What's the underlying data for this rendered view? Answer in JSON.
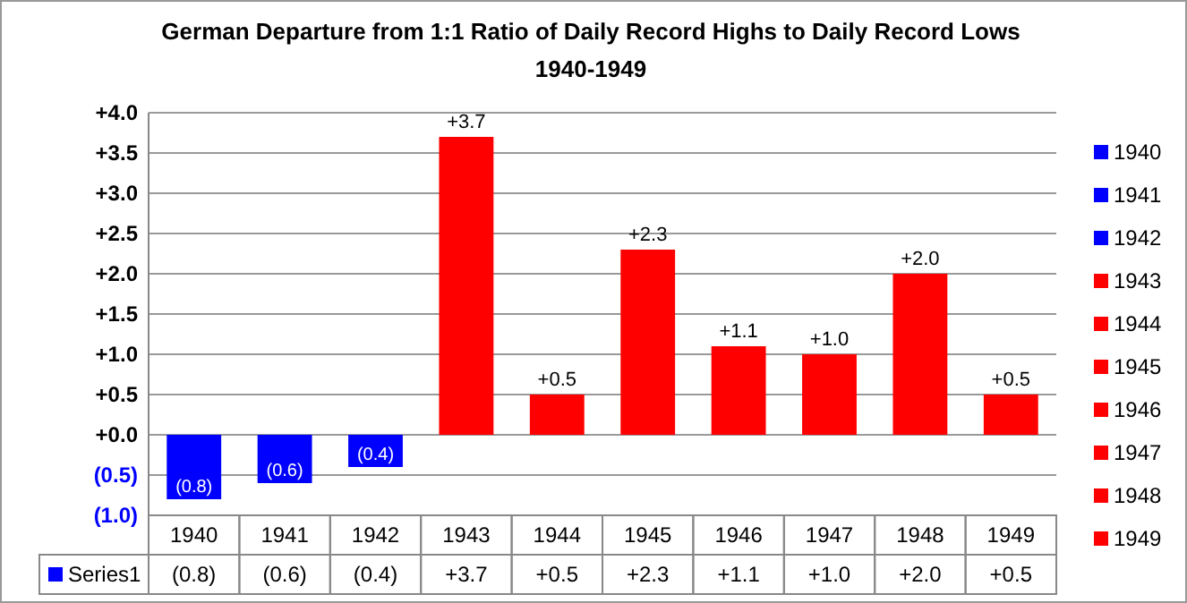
{
  "chart_data": {
    "type": "bar",
    "title": "German Departure from 1:1 Ratio of Daily Record Highs to Daily Record Lows",
    "subtitle": "1940-1949",
    "categories": [
      "1940",
      "1941",
      "1942",
      "1943",
      "1944",
      "1945",
      "1946",
      "1947",
      "1948",
      "1949"
    ],
    "series": [
      {
        "name": "Series1",
        "colors": [
          "#0000ff",
          "#0000ff",
          "#0000ff",
          "#ff0000",
          "#ff0000",
          "#ff0000",
          "#ff0000",
          "#ff0000",
          "#ff0000",
          "#ff0000"
        ],
        "values": [
          -0.8,
          -0.6,
          -0.4,
          3.7,
          0.5,
          2.3,
          1.1,
          1.0,
          2.0,
          0.5
        ],
        "value_labels": [
          "(0.8)",
          "(0.6)",
          "(0.4)",
          "+3.7",
          "+0.5",
          "+2.3",
          "+1.1",
          "+1.0",
          "+2.0",
          "+0.5"
        ]
      }
    ],
    "ylim": [
      -1,
      4
    ],
    "yticks": [
      {
        "value": -1,
        "label": "(1.0)"
      },
      {
        "value": -0.5,
        "label": "(0.5)"
      },
      {
        "value": 0,
        "label": "+0.0"
      },
      {
        "value": 0.5,
        "label": "+0.5"
      },
      {
        "value": 1,
        "label": "+1.0"
      },
      {
        "value": 1.5,
        "label": "+1.5"
      },
      {
        "value": 2,
        "label": "+2.0"
      },
      {
        "value": 2.5,
        "label": "+2.5"
      },
      {
        "value": 3,
        "label": "+3.0"
      },
      {
        "value": 3.5,
        "label": "+3.5"
      },
      {
        "value": 4,
        "label": "+4.0"
      }
    ],
    "grid": "y",
    "legend": "bottom left"
  }
}
